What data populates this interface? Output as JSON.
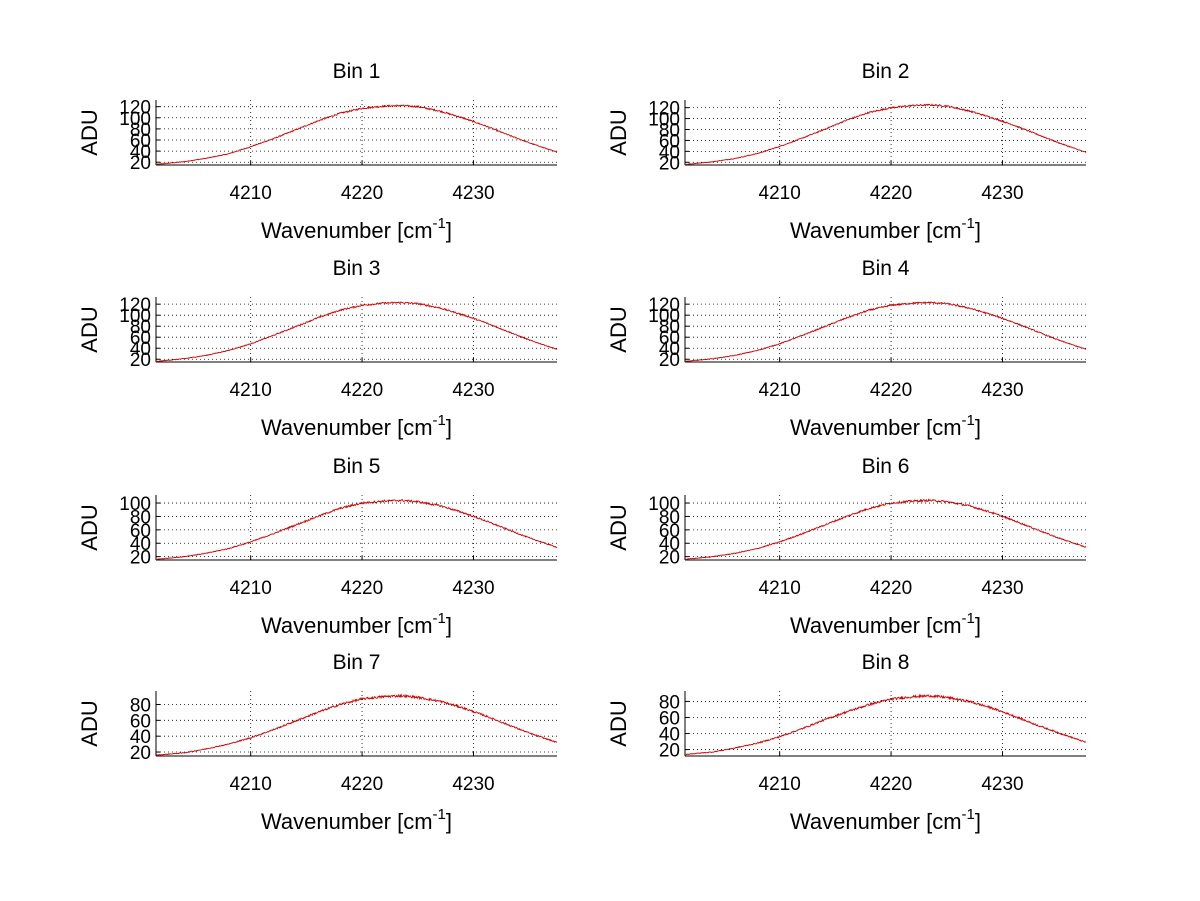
{
  "chart_data": [
    {
      "type": "line",
      "title": "Bin 1",
      "xlabel": "Wavenumber [cm",
      "xlabel_sup": "-1",
      "xlabel_tail": "]",
      "ylabel": "ADU",
      "xlim": [
        4201.5,
        4237.5
      ],
      "ylim": [
        15,
        132
      ],
      "xticks": [
        "4210",
        "4220",
        "4230"
      ],
      "yticks": [
        "20",
        "40",
        "60",
        "80",
        "100",
        "120"
      ],
      "ytick_values": [
        20,
        40,
        60,
        80,
        100,
        120
      ],
      "series": [
        {
          "name": "Bin 1",
          "color": "#cc0000",
          "x": [
            4201.5,
            4204,
            4206,
            4208,
            4210,
            4212,
            4214,
            4216,
            4218,
            4220,
            4222,
            4223.5,
            4225,
            4227,
            4229,
            4231,
            4233,
            4235,
            4237.5
          ],
          "y": [
            16,
            21,
            27,
            35,
            48,
            62,
            78,
            94,
            108,
            117,
            121,
            122,
            120,
            112,
            100,
            86,
            70,
            55,
            38
          ]
        }
      ]
    },
    {
      "type": "line",
      "title": "Bin 2",
      "xlabel": "Wavenumber [cm",
      "xlabel_sup": "-1",
      "xlabel_tail": "]",
      "ylabel": "ADU",
      "xlim": [
        4201.5,
        4237.5
      ],
      "ylim": [
        15,
        134
      ],
      "xticks": [
        "4210",
        "4220",
        "4230"
      ],
      "yticks": [
        "20",
        "40",
        "60",
        "80",
        "100",
        "120"
      ],
      "ytick_values": [
        20,
        40,
        60,
        80,
        100,
        120
      ],
      "series": [
        {
          "name": "Bin 2",
          "color": "#cc0000",
          "x": [
            4201.5,
            4204,
            4206,
            4208,
            4210,
            4212,
            4214,
            4216,
            4218,
            4220,
            4222,
            4223.5,
            4225,
            4227,
            4229,
            4231,
            4233,
            4235,
            4237.5
          ],
          "y": [
            16,
            21,
            27,
            36,
            49,
            64,
            80,
            97,
            111,
            120,
            124,
            125,
            123,
            114,
            102,
            88,
            72,
            56,
            38
          ]
        }
      ]
    },
    {
      "type": "line",
      "title": "Bin 3",
      "xlabel": "Wavenumber [cm",
      "xlabel_sup": "-1",
      "xlabel_tail": "]",
      "ylabel": "ADU",
      "xlim": [
        4201.5,
        4237.5
      ],
      "ylim": [
        15,
        133
      ],
      "xticks": [
        "4210",
        "4220",
        "4230"
      ],
      "yticks": [
        "20",
        "40",
        "60",
        "80",
        "100",
        "120"
      ],
      "ytick_values": [
        20,
        40,
        60,
        80,
        100,
        120
      ],
      "series": [
        {
          "name": "Bin 3",
          "color": "#cc0000",
          "x": [
            4201.5,
            4204,
            4206,
            4208,
            4210,
            4212,
            4214,
            4216,
            4218,
            4220,
            4222,
            4223.5,
            4225,
            4227,
            4229,
            4231,
            4233,
            4235,
            4237.5
          ],
          "y": [
            16,
            21,
            27,
            36,
            48,
            63,
            79,
            95,
            109,
            118,
            122,
            123,
            121,
            113,
            101,
            87,
            71,
            55,
            38
          ]
        }
      ]
    },
    {
      "type": "line",
      "title": "Bin 4",
      "xlabel": "Wavenumber [cm",
      "xlabel_sup": "-1",
      "xlabel_tail": "]",
      "ylabel": "ADU",
      "xlim": [
        4201.5,
        4237.5
      ],
      "ylim": [
        15,
        133
      ],
      "xticks": [
        "4210",
        "4220",
        "4230"
      ],
      "yticks": [
        "20",
        "40",
        "60",
        "80",
        "100",
        "120"
      ],
      "ytick_values": [
        20,
        40,
        60,
        80,
        100,
        120
      ],
      "series": [
        {
          "name": "Bin 4",
          "color": "#cc0000",
          "x": [
            4201.5,
            4204,
            4206,
            4208,
            4210,
            4212,
            4214,
            4216,
            4218,
            4220,
            4222,
            4223.5,
            4225,
            4227,
            4229,
            4231,
            4233,
            4235,
            4237.5
          ],
          "y": [
            16,
            21,
            27,
            36,
            48,
            63,
            79,
            95,
            109,
            118,
            122,
            123,
            121,
            113,
            101,
            87,
            71,
            55,
            38
          ]
        }
      ]
    },
    {
      "type": "line",
      "title": "Bin 5",
      "xlabel": "Wavenumber [cm",
      "xlabel_sup": "-1",
      "xlabel_tail": "]",
      "ylabel": "ADU",
      "xlim": [
        4201.5,
        4237.5
      ],
      "ylim": [
        15,
        112
      ],
      "xticks": [
        "4210",
        "4220",
        "4230"
      ],
      "yticks": [
        "20",
        "40",
        "60",
        "80",
        "100"
      ],
      "ytick_values": [
        20,
        40,
        60,
        80,
        100
      ],
      "series": [
        {
          "name": "Bin 5",
          "color": "#cc0000",
          "x": [
            4201.5,
            4204,
            4206,
            4208,
            4210,
            4212,
            4214,
            4216,
            4218,
            4220,
            4222,
            4223.5,
            4225,
            4227,
            4229,
            4231,
            4233,
            4235,
            4237.5
          ],
          "y": [
            16,
            20,
            25,
            32,
            42,
            54,
            67,
            80,
            92,
            100,
            103,
            104,
            102,
            96,
            86,
            74,
            61,
            48,
            34
          ]
        }
      ]
    },
    {
      "type": "line",
      "title": "Bin 6",
      "xlabel": "Wavenumber [cm",
      "xlabel_sup": "-1",
      "xlabel_tail": "]",
      "ylabel": "ADU",
      "xlim": [
        4201.5,
        4237.5
      ],
      "ylim": [
        15,
        112
      ],
      "xticks": [
        "4210",
        "4220",
        "4230"
      ],
      "yticks": [
        "20",
        "40",
        "60",
        "80",
        "100"
      ],
      "ytick_values": [
        20,
        40,
        60,
        80,
        100
      ],
      "series": [
        {
          "name": "Bin 6",
          "color": "#cc0000",
          "x": [
            4201.5,
            4204,
            4206,
            4208,
            4210,
            4212,
            4214,
            4216,
            4218,
            4220,
            4222,
            4223.5,
            4225,
            4227,
            4229,
            4231,
            4233,
            4235,
            4237.5
          ],
          "y": [
            16,
            20,
            25,
            32,
            42,
            54,
            67,
            80,
            92,
            100,
            103,
            104,
            102,
            96,
            86,
            74,
            61,
            48,
            34
          ]
        }
      ]
    },
    {
      "type": "line",
      "title": "Bin 7",
      "xlabel": "Wavenumber [cm",
      "xlabel_sup": "-1",
      "xlabel_tail": "]",
      "ylabel": "ADU",
      "xlim": [
        4201.5,
        4237.5
      ],
      "ylim": [
        15,
        97
      ],
      "xticks": [
        "4210",
        "4220",
        "4230"
      ],
      "yticks": [
        "20",
        "40",
        "60",
        "80"
      ],
      "ytick_values": [
        20,
        40,
        60,
        80
      ],
      "series": [
        {
          "name": "Bin 7",
          "color": "#cc0000",
          "x": [
            4201.5,
            4204,
            4206,
            4208,
            4210,
            4212,
            4214,
            4216,
            4218,
            4220,
            4222,
            4223.5,
            4225,
            4227,
            4229,
            4231,
            4233,
            4235,
            4237.5
          ],
          "y": [
            16,
            19,
            24,
            30,
            38,
            48,
            59,
            70,
            80,
            87,
            90,
            91,
            89,
            84,
            76,
            66,
            55,
            44,
            32
          ]
        }
      ]
    },
    {
      "type": "line",
      "title": "Bin 8",
      "xlabel": "Wavenumber [cm",
      "xlabel_sup": "-1",
      "xlabel_tail": "]",
      "ylabel": "ADU",
      "xlim": [
        4201.5,
        4237.5
      ],
      "ylim": [
        12,
        93
      ],
      "xticks": [
        "4210",
        "4220",
        "4230"
      ],
      "yticks": [
        "20",
        "40",
        "60",
        "80"
      ],
      "ytick_values": [
        20,
        40,
        60,
        80
      ],
      "series": [
        {
          "name": "Bin 8",
          "color": "#cc0000",
          "x": [
            4201.5,
            4204,
            4206,
            4208,
            4210,
            4212,
            4214,
            4216,
            4218,
            4220,
            4222,
            4223.5,
            4225,
            4227,
            4229,
            4231,
            4233,
            4235,
            4237.5
          ],
          "y": [
            14,
            17,
            22,
            28,
            36,
            46,
            57,
            67,
            76,
            83,
            86,
            87,
            85,
            80,
            72,
            62,
            51,
            41,
            29
          ]
        }
      ]
    }
  ]
}
